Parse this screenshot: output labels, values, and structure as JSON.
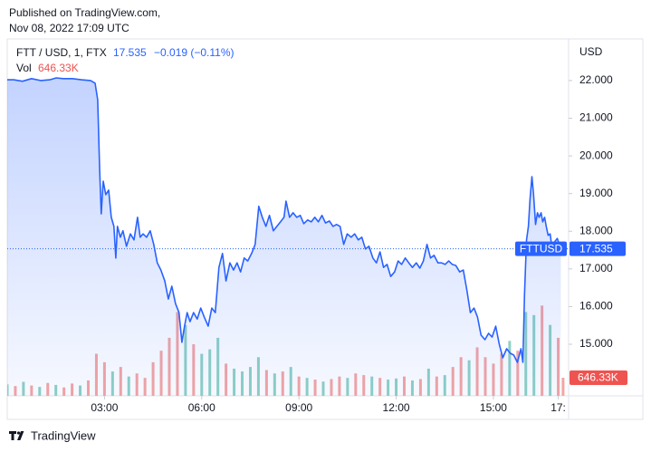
{
  "header": {
    "line1": "Published on TradingView.com,",
    "line2": "Nov 08, 2022 17:09 UTC"
  },
  "footer": {
    "brand": "TradingView"
  },
  "chart_data": {
    "type": "line",
    "symbol": "FTT / USD, 1, FTX",
    "ticker": "FTTUSD",
    "last": 17.535,
    "change_label": "−0.019 (−0.11%)",
    "y_axis_label": "USD",
    "color": "#2962ff",
    "xlim": [
      0,
      17.32
    ],
    "xticks": [
      {
        "value": 3,
        "label": "03:00"
      },
      {
        "value": 6,
        "label": "06:00"
      },
      {
        "value": 9,
        "label": "09:00"
      },
      {
        "value": 12,
        "label": "12:00"
      },
      {
        "value": 15,
        "label": "15:00"
      },
      {
        "value": 17,
        "label": "17:"
      }
    ],
    "ylim": [
      13.63,
      23.08
    ],
    "yticks": [
      {
        "value": 15,
        "label": "15.000"
      },
      {
        "value": 16,
        "label": "16.000"
      },
      {
        "value": 17,
        "label": "17.000"
      },
      {
        "value": 18,
        "label": "18.000"
      },
      {
        "value": 19,
        "label": "19.000"
      },
      {
        "value": 20,
        "label": "20.000"
      },
      {
        "value": 21,
        "label": "21.000"
      },
      {
        "value": 22,
        "label": "22.000"
      }
    ],
    "x": [
      0,
      0.2,
      0.47,
      0.75,
      1.03,
      1.31,
      1.51,
      1.73,
      2.01,
      2.29,
      2.57,
      2.71,
      2.79,
      2.85,
      2.9,
      2.96,
      3.04,
      3.13,
      3.21,
      3.29,
      3.35,
      3.4,
      3.49,
      3.57,
      3.68,
      3.8,
      3.91,
      4.02,
      4.1,
      4.19,
      4.3,
      4.41,
      4.52,
      4.63,
      4.74,
      4.86,
      4.97,
      5.08,
      5.19,
      5.3,
      5.39,
      5.47,
      5.55,
      5.64,
      5.75,
      5.86,
      5.97,
      6.08,
      6.2,
      6.31,
      6.42,
      6.53,
      6.64,
      6.75,
      6.87,
      6.98,
      7.09,
      7.2,
      7.31,
      7.42,
      7.54,
      7.65,
      7.76,
      7.87,
      7.98,
      8.09,
      8.21,
      8.32,
      8.43,
      8.54,
      8.6,
      8.71,
      8.82,
      8.93,
      9.04,
      9.15,
      9.27,
      9.38,
      9.49,
      9.6,
      9.71,
      9.82,
      9.94,
      10.05,
      10.16,
      10.27,
      10.38,
      10.49,
      10.61,
      10.72,
      10.83,
      10.94,
      11.05,
      11.16,
      11.28,
      11.39,
      11.5,
      11.61,
      11.72,
      11.83,
      11.95,
      12.06,
      12.17,
      12.28,
      12.39,
      12.5,
      12.62,
      12.73,
      12.84,
      12.95,
      13.06,
      13.17,
      13.29,
      13.4,
      13.51,
      13.62,
      13.73,
      13.84,
      13.96,
      14.07,
      14.18,
      14.29,
      14.4,
      14.51,
      14.62,
      14.74,
      14.85,
      14.96,
      15.07,
      15.18,
      15.29,
      15.41,
      15.52,
      15.63,
      15.74,
      15.85,
      15.91,
      15.96,
      16.02,
      16.08,
      16.13,
      16.19,
      16.24,
      16.3,
      16.36,
      16.41,
      16.47,
      16.52,
      16.58,
      16.63,
      16.69,
      16.75,
      16.8,
      16.86,
      16.97,
      17.08
    ],
    "values": [
      22.02,
      22.02,
      21.98,
      22.05,
      22,
      22.02,
      22.07,
      22.05,
      22.05,
      22.02,
      22,
      21.93,
      21.49,
      19.68,
      18.46,
      19.33,
      18.97,
      19.09,
      18.37,
      18.13,
      17.29,
      18.13,
      17.84,
      18.01,
      17.6,
      17.93,
      17.77,
      18.37,
      17.84,
      17.93,
      17.84,
      18.01,
      17.65,
      17.16,
      16.97,
      16.68,
      16.2,
      16.54,
      16.08,
      15.84,
      15.05,
      15.48,
      15.84,
      15.6,
      15.84,
      15.67,
      15.96,
      15.72,
      15.48,
      15.96,
      15.84,
      17.04,
      17.41,
      16.68,
      17.16,
      16.97,
      17.16,
      16.92,
      17.29,
      17.21,
      17.41,
      17.65,
      18.66,
      18.37,
      18.13,
      18.42,
      18.01,
      18.13,
      18.25,
      18.37,
      18.8,
      18.37,
      18.49,
      18.37,
      18.42,
      18.2,
      18.3,
      18.25,
      18.37,
      18.25,
      18.42,
      18.22,
      18.27,
      18.13,
      18.18,
      18.13,
      17.65,
      17.93,
      17.84,
      17.93,
      17.77,
      17.84,
      17.53,
      17.6,
      17.29,
      17.16,
      17.45,
      17.04,
      17.12,
      16.8,
      16.92,
      17.21,
      17.12,
      17.29,
      17.16,
      17.04,
      17.16,
      17.02,
      17.21,
      17.65,
      17.29,
      17.36,
      17.16,
      17.16,
      17.12,
      17.21,
      17.12,
      17.09,
      16.92,
      16.97,
      16.44,
      15.84,
      15.96,
      15.72,
      15.24,
      15.12,
      15.29,
      15.19,
      15.48,
      15,
      14.64,
      14.88,
      14.76,
      14.71,
      14.52,
      14.88,
      14.52,
      16.32,
      17.76,
      18.13,
      18.85,
      19.45,
      18.97,
      18.18,
      18.49,
      18.37,
      18.49,
      18.25,
      18.37,
      18.13,
      17.89,
      17.93,
      17.6,
      17.69,
      17.81,
      17.53
    ],
    "volume": {
      "label": "Vol",
      "last_label": "646.33K",
      "lim": [
        0,
        12700000
      ],
      "x": [
        0,
        0.25,
        0.5,
        0.75,
        1,
        1.25,
        1.5,
        1.75,
        2,
        2.25,
        2.5,
        2.75,
        3,
        3.25,
        3.5,
        3.75,
        4,
        4.25,
        4.5,
        4.75,
        5,
        5.25,
        5.5,
        5.75,
        6,
        6.25,
        6.5,
        6.75,
        7,
        7.25,
        7.5,
        7.75,
        8,
        8.25,
        8.5,
        8.75,
        9,
        9.25,
        9.5,
        9.75,
        10,
        10.25,
        10.5,
        10.75,
        11,
        11.25,
        11.5,
        11.75,
        12,
        12.25,
        12.5,
        12.75,
        13,
        13.25,
        13.5,
        13.75,
        14,
        14.25,
        14.5,
        14.75,
        15,
        15.25,
        15.5,
        15.75,
        16,
        16.25,
        16.5,
        16.75,
        17,
        17.15
      ],
      "values": [
        410000,
        350000,
        500000,
        370000,
        320000,
        460000,
        390000,
        300000,
        440000,
        370000,
        550000,
        1500000,
        1200000,
        870000,
        1030000,
        690000,
        800000,
        640000,
        1200000,
        1610000,
        2070000,
        2990000,
        2530000,
        1840000,
        1500000,
        1660000,
        2070000,
        1150000,
        970000,
        870000,
        1030000,
        1380000,
        920000,
        800000,
        870000,
        1030000,
        690000,
        640000,
        580000,
        510000,
        600000,
        690000,
        640000,
        800000,
        740000,
        690000,
        640000,
        580000,
        620000,
        690000,
        550000,
        600000,
        970000,
        690000,
        740000,
        1030000,
        1380000,
        1270000,
        1730000,
        1380000,
        1150000,
        1500000,
        1960000,
        1610000,
        2990000,
        2880000,
        3220000,
        2530000,
        2070000,
        646330
      ],
      "colors": [
        "#8fd1c4",
        "#f5a5a2",
        "#8fd1c4",
        "#f5a5a2",
        "#8fd1c4",
        "#f5a5a2",
        "#8fd1c4",
        "#f5a5a2",
        "#f5a5a2",
        "#8fd1c4",
        "#f5a5a2",
        "#f5a5a2",
        "#f5a5a2",
        "#8fd1c4",
        "#f5a5a2",
        "#8fd1c4",
        "#f5a5a2",
        "#f5a5a2",
        "#f5a5a2",
        "#f5a5a2",
        "#f5a5a2",
        "#f5a5a2",
        "#8fd1c4",
        "#f5a5a2",
        "#8fd1c4",
        "#8fd1c4",
        "#8fd1c4",
        "#f5a5a2",
        "#8fd1c4",
        "#8fd1c4",
        "#8fd1c4",
        "#8fd1c4",
        "#f5a5a2",
        "#8fd1c4",
        "#f5a5a2",
        "#8fd1c4",
        "#f5a5a2",
        "#8fd1c4",
        "#f5a5a2",
        "#8fd1c4",
        "#f5a5a2",
        "#f5a5a2",
        "#8fd1c4",
        "#f5a5a2",
        "#f5a5a2",
        "#8fd1c4",
        "#f5a5a2",
        "#8fd1c4",
        "#8fd1c4",
        "#f5a5a2",
        "#8fd1c4",
        "#f5a5a2",
        "#8fd1c4",
        "#f5a5a2",
        "#8fd1c4",
        "#f5a5a2",
        "#f5a5a2",
        "#8fd1c4",
        "#f5a5a2",
        "#f5a5a2",
        "#f5a5a2",
        "#f5a5a2",
        "#8fd1c4",
        "#f5a5a2",
        "#8fd1c4",
        "#8fd1c4",
        "#f5a5a2",
        "#8fd1c4",
        "#f5a5a2",
        "#f5a5a2"
      ]
    }
  }
}
